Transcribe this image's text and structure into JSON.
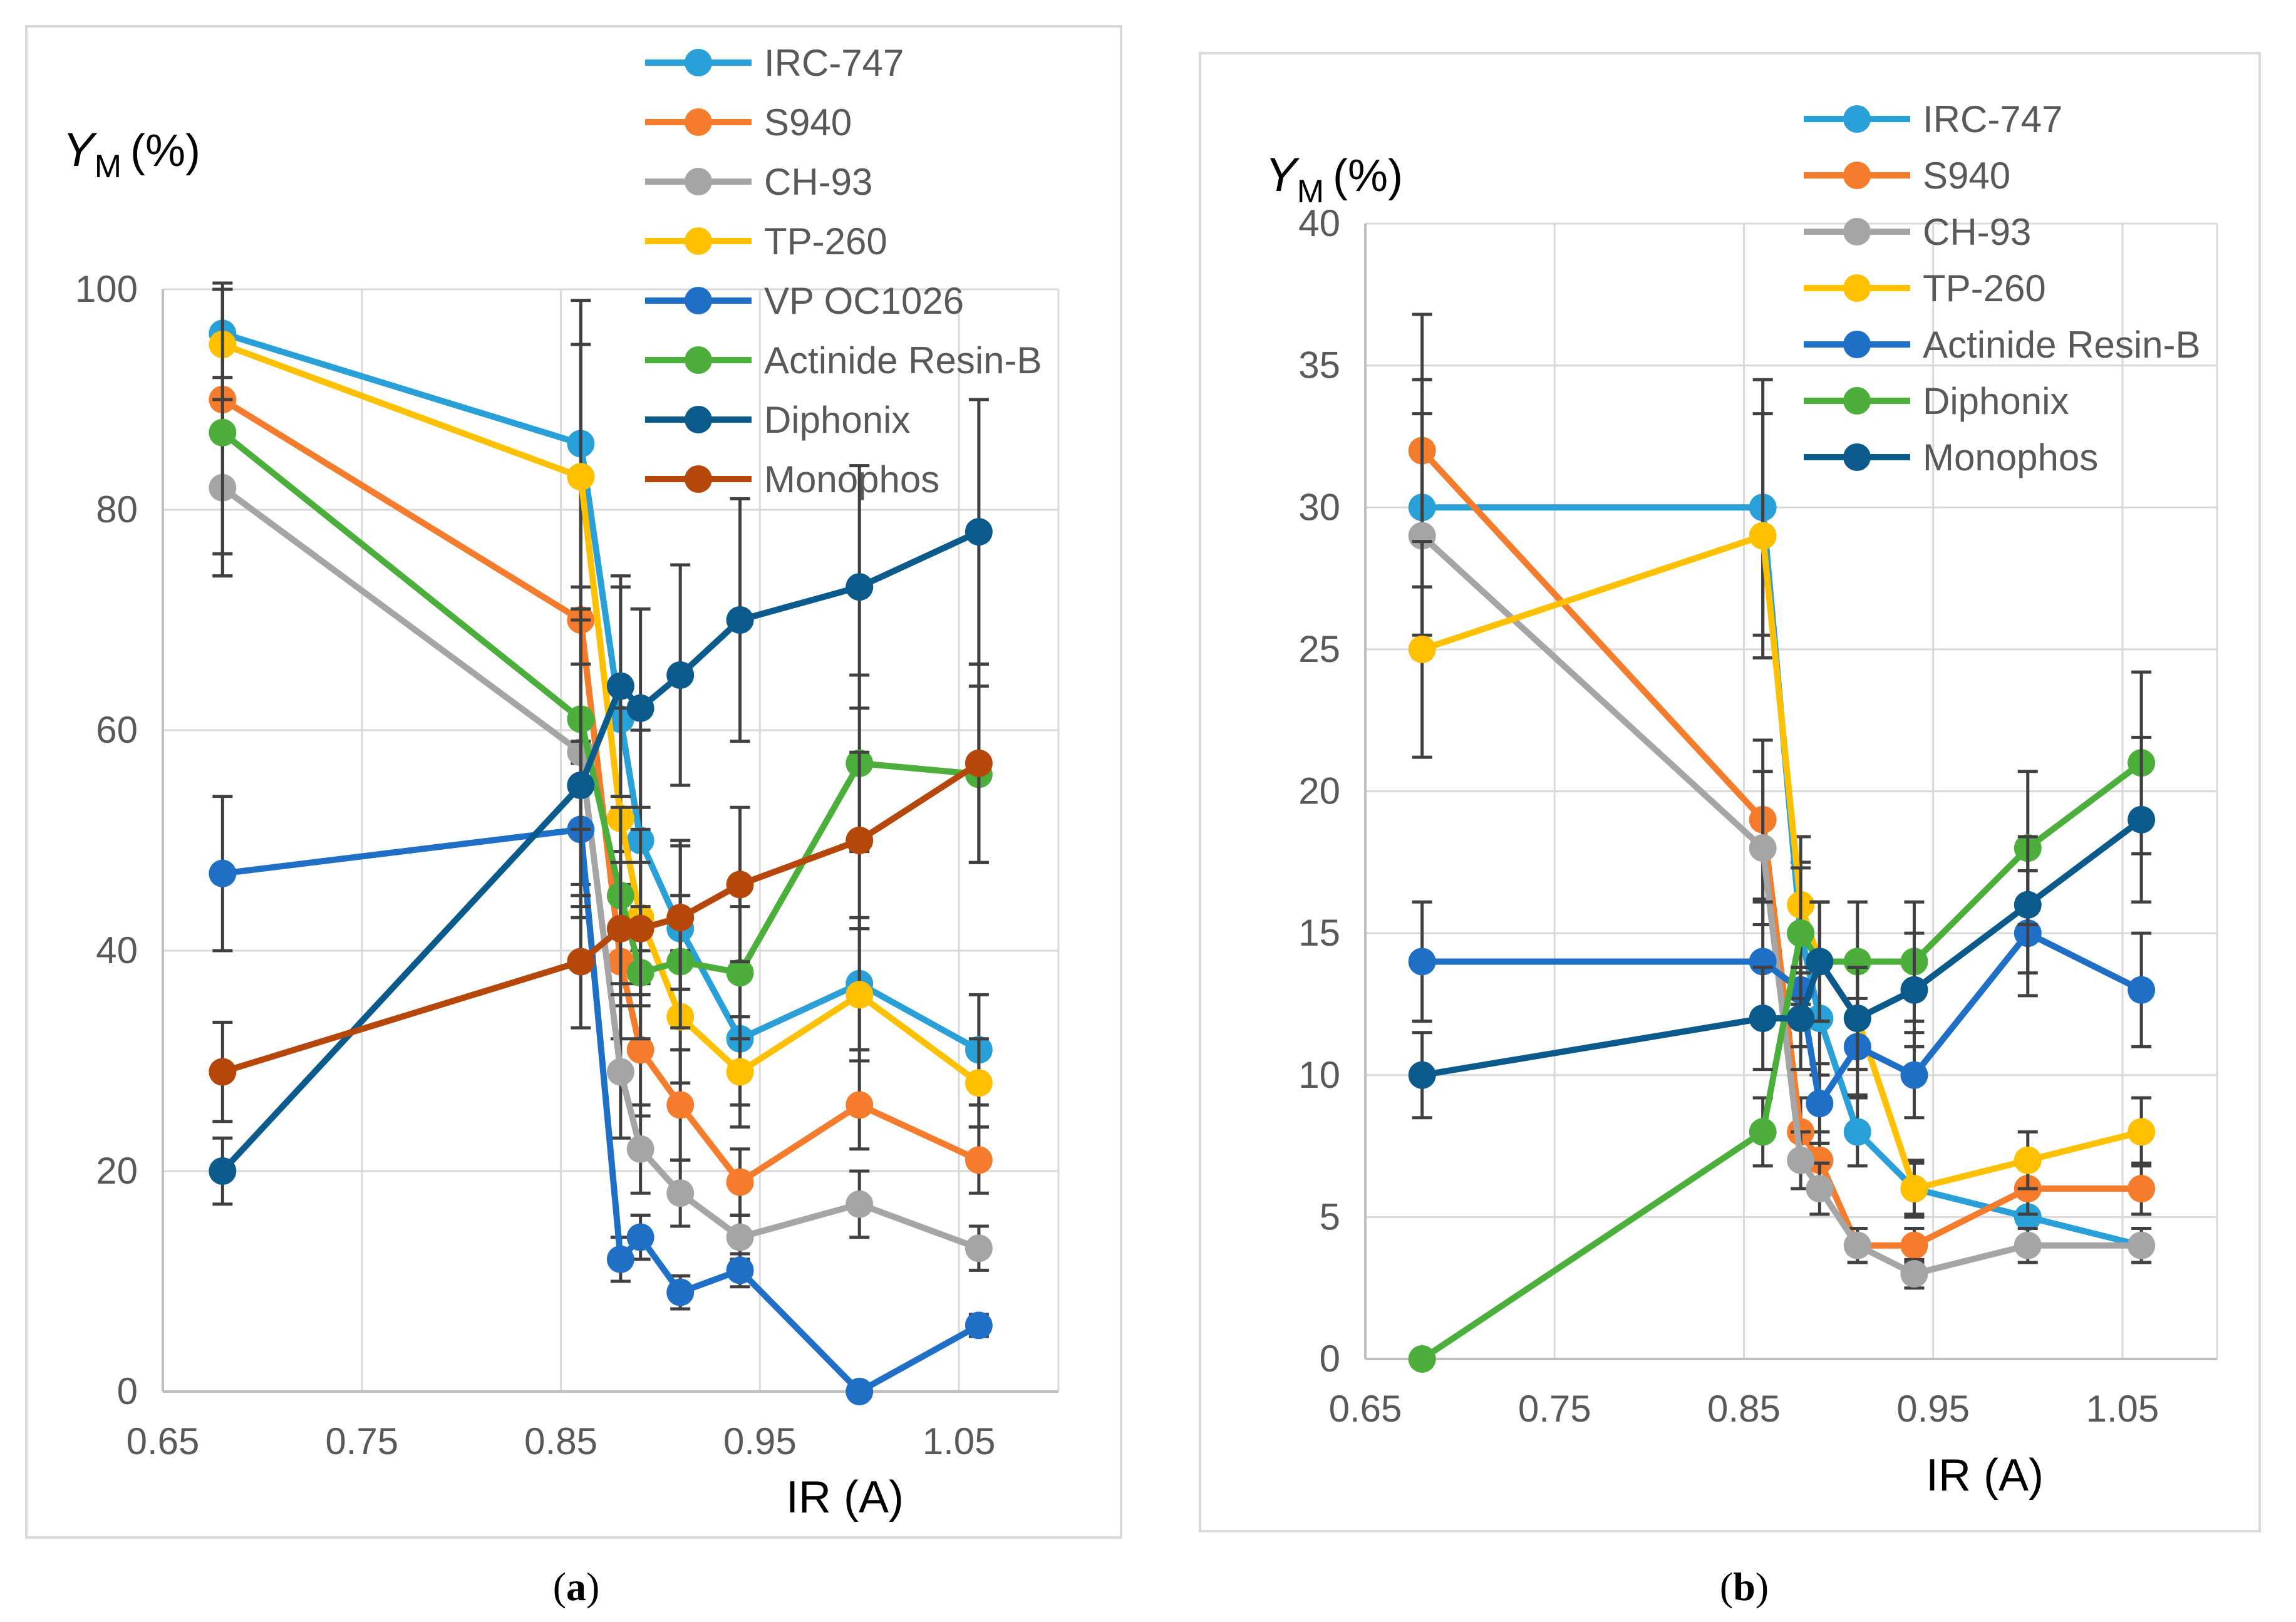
{
  "chart_data": [
    {
      "type": "line",
      "caption": "a",
      "ylabel": "Y",
      "ylabel_sub": "M",
      "ylabel_unit": "(%)",
      "xlabel": "IR  (A)",
      "xlim": [
        0.65,
        1.1
      ],
      "ylim": [
        0,
        100
      ],
      "xticks": [
        0.65,
        0.75,
        0.85,
        0.95,
        1.05
      ],
      "xtick_labels": [
        "0.65",
        "0.75",
        "0.85",
        "0.95",
        "1.05"
      ],
      "yticks": [
        0,
        20,
        40,
        60,
        80,
        100
      ],
      "ytick_labels": [
        "0",
        "20",
        "40",
        "60",
        "80",
        "100"
      ],
      "grid": true,
      "legend_position": "top-right",
      "series": [
        {
          "name": "IRC-747",
          "color": "#29A0D8",
          "x": [
            0.68,
            0.86,
            0.88,
            0.89,
            0.91,
            0.94,
            1.0,
            1.06
          ],
          "y": [
            96,
            86,
            61,
            50,
            42,
            32,
            37,
            31
          ],
          "err": [
            4,
            13,
            12,
            10,
            8,
            6,
            6,
            5
          ]
        },
        {
          "name": "S940",
          "color": "#F47C2C",
          "x": [
            0.68,
            0.86,
            0.88,
            0.89,
            0.91,
            0.94,
            1.0,
            1.06
          ],
          "y": [
            90,
            70,
            39,
            31,
            26,
            19,
            26,
            21
          ],
          "err": [
            14,
            13,
            7,
            6,
            5,
            3,
            4,
            3
          ]
        },
        {
          "name": "CH-93",
          "color": "#A5A5A5",
          "x": [
            0.68,
            0.86,
            0.88,
            0.89,
            0.91,
            0.94,
            1.0,
            1.06
          ],
          "y": [
            82,
            58,
            29,
            22,
            18,
            14,
            17,
            13
          ],
          "err": [
            8,
            12,
            6,
            4,
            3,
            2,
            3,
            2
          ]
        },
        {
          "name": "TP-260",
          "color": "#FFC000",
          "x": [
            0.68,
            0.86,
            0.88,
            0.89,
            0.91,
            0.94,
            1.0,
            1.06
          ],
          "y": [
            95,
            83,
            52,
            43,
            34,
            29,
            36,
            28
          ],
          "err": [
            5,
            12,
            10,
            8,
            6,
            5,
            6,
            4
          ]
        },
        {
          "name": "VP OC1026",
          "color": "#1F6FC6",
          "x": [
            0.68,
            0.86,
            0.88,
            0.89,
            0.91,
            0.94,
            1.0,
            1.06
          ],
          "y": [
            47,
            51,
            12,
            14,
            9,
            11,
            0,
            6
          ],
          "err": [
            7,
            8,
            2,
            2,
            1.5,
            1.5,
            0,
            1
          ]
        },
        {
          "name": "Actinide Resin-B",
          "color": "#4CAF3C",
          "x": [
            0.68,
            0.86,
            0.88,
            0.89,
            0.91,
            0.94,
            1.0,
            1.06
          ],
          "y": [
            87,
            61,
            45,
            38,
            39,
            38,
            57,
            56
          ],
          "err": [
            13,
            10,
            8,
            6,
            6,
            6,
            8,
            8
          ]
        },
        {
          "name": "Diphonix",
          "color": "#0B5A8C",
          "x": [
            0.68,
            0.86,
            0.88,
            0.89,
            0.91,
            0.94,
            1.0,
            1.06
          ],
          "y": [
            20,
            55,
            64,
            62,
            65,
            70,
            73,
            78
          ],
          "err": [
            3,
            11,
            10,
            9,
            10,
            11,
            11,
            12
          ]
        },
        {
          "name": "Monophos",
          "color": "#B5470B",
          "x": [
            0.68,
            0.86,
            0.88,
            0.89,
            0.91,
            0.94,
            1.0,
            1.06
          ],
          "y": [
            29,
            39,
            42,
            42,
            43,
            46,
            50,
            57
          ],
          "err": [
            4.5,
            6,
            6,
            6,
            6.5,
            7,
            8,
            9
          ]
        }
      ]
    },
    {
      "type": "line",
      "caption": "b",
      "ylabel": "Y",
      "ylabel_sub": "M",
      "ylabel_unit": "(%)",
      "xlabel": "IR  (A)",
      "xlim": [
        0.65,
        1.1
      ],
      "ylim": [
        0,
        40
      ],
      "xticks": [
        0.65,
        0.75,
        0.85,
        0.95,
        1.05
      ],
      "xtick_labels": [
        "0.65",
        "0.75",
        "0.85",
        "0.95",
        "1.05"
      ],
      "yticks": [
        0,
        5,
        10,
        15,
        20,
        25,
        30,
        35,
        40
      ],
      "ytick_labels": [
        "0",
        "5",
        "10",
        "15",
        "20",
        "25",
        "30",
        "35",
        "40"
      ],
      "grid": true,
      "legend_position": "top-right",
      "series": [
        {
          "name": "IRC-747",
          "color": "#29A0D8",
          "x": [
            0.68,
            0.86,
            0.88,
            0.89,
            0.91,
            0.94,
            1.0,
            1.06
          ],
          "y": [
            30,
            30,
            15,
            12,
            8,
            6,
            5,
            4
          ],
          "err": [
            4.5,
            4.5,
            2.5,
            2,
            1.2,
            1,
            0.8,
            0.6
          ]
        },
        {
          "name": "S940",
          "color": "#F47C2C",
          "x": [
            0.68,
            0.86,
            0.88,
            0.89,
            0.91,
            0.94,
            1.0,
            1.06
          ],
          "y": [
            32,
            19,
            8,
            7,
            4,
            4,
            6,
            6
          ],
          "err": [
            4.8,
            2.8,
            1.2,
            1,
            0.6,
            0.6,
            0.9,
            0.9
          ]
        },
        {
          "name": "CH-93",
          "color": "#A5A5A5",
          "x": [
            0.68,
            0.86,
            0.88,
            0.89,
            0.91,
            0.94,
            1.0,
            1.06
          ],
          "y": [
            29,
            18,
            7,
            6,
            4,
            3,
            4,
            4
          ],
          "err": [
            4.3,
            2.7,
            1,
            0.9,
            0.6,
            0.5,
            0.6,
            0.6
          ]
        },
        {
          "name": "TP-260",
          "color": "#FFC000",
          "x": [
            0.68,
            0.86,
            0.88,
            0.89,
            0.91,
            0.94,
            1.0,
            1.06
          ],
          "y": [
            25,
            29,
            16,
            14,
            12,
            6,
            7,
            8
          ],
          "err": [
            3.8,
            4.3,
            2.4,
            2.1,
            1.8,
            0.9,
            1,
            1.2
          ]
        },
        {
          "name": "Actinide Resin-B",
          "color": "#1F6FC6",
          "x": [
            0.68,
            0.86,
            0.88,
            0.89,
            0.91,
            0.94,
            1.0,
            1.06
          ],
          "y": [
            14,
            14,
            13,
            9,
            11,
            10,
            15,
            13
          ],
          "err": [
            2.1,
            2.1,
            2,
            1.4,
            1.7,
            1.5,
            2.2,
            2
          ]
        },
        {
          "name": "Diphonix",
          "color": "#4CAF3C",
          "x": [
            0.68,
            0.86,
            0.88,
            0.89,
            0.91,
            0.94,
            1.0,
            1.06
          ],
          "y": [
            0,
            8,
            15,
            14,
            14,
            14,
            18,
            21
          ],
          "err": [
            0,
            1.2,
            2.3,
            2.1,
            2.1,
            2.1,
            2.7,
            3.2
          ]
        },
        {
          "name": "Monophos",
          "color": "#0B5A8C",
          "x": [
            0.68,
            0.86,
            0.88,
            0.89,
            0.91,
            0.94,
            1.0,
            1.06
          ],
          "y": [
            10,
            12,
            12,
            14,
            12,
            13,
            16,
            19
          ],
          "err": [
            1.5,
            1.8,
            1.8,
            2.1,
            1.8,
            2,
            2.4,
            2.9
          ]
        }
      ]
    }
  ]
}
